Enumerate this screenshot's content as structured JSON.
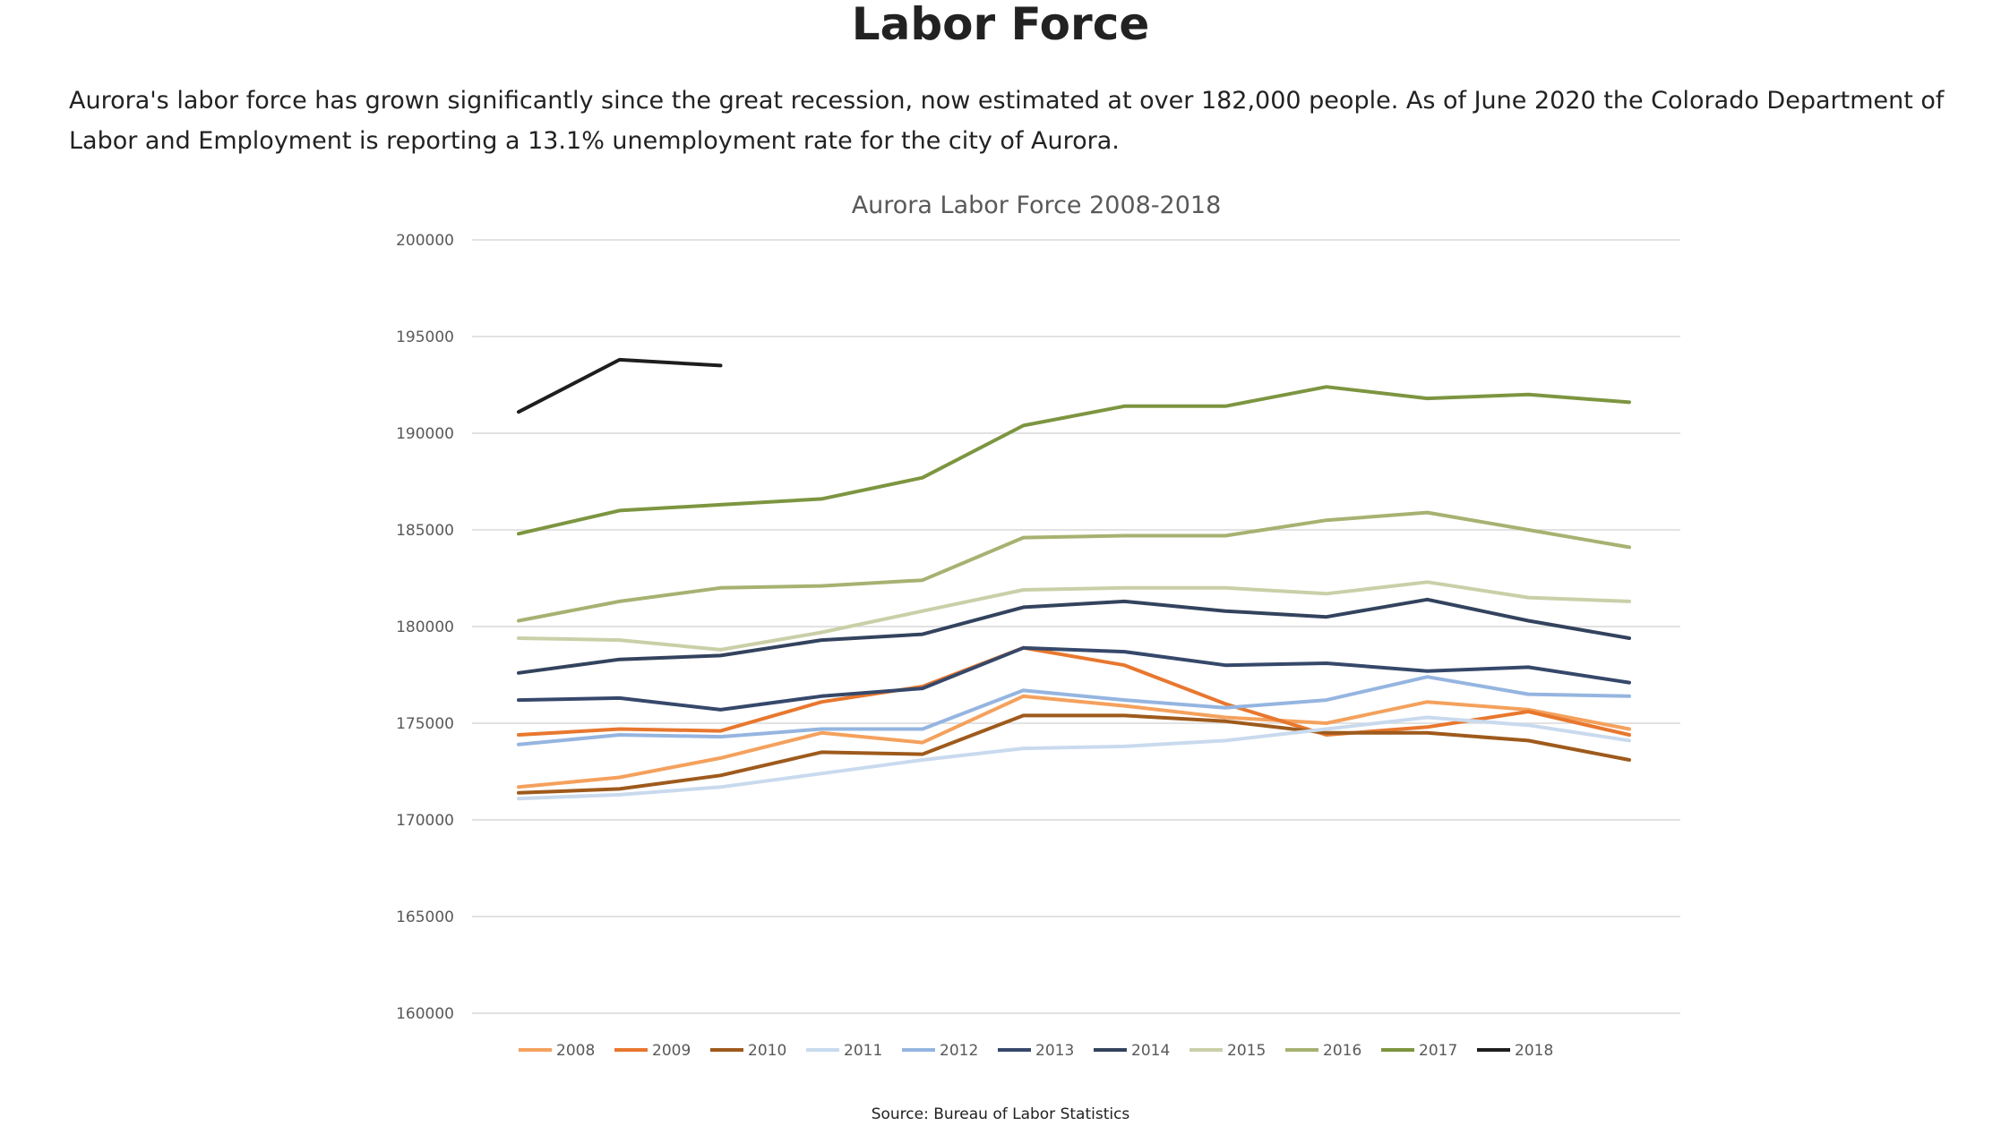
{
  "page": {
    "title": "Labor Force",
    "intro": "Aurora's labor force has grown significantly since the great recession, now estimated at over 182,000 people. As of June 2020 the Colorado Department of Labor and Employment is reporting a 13.1% unemployment rate for the city of Aurora.",
    "source": "Source: Bureau of Labor Statistics"
  },
  "chart_data": {
    "type": "line",
    "title": "Aurora Labor Force 2008-2018",
    "xlabel": "",
    "ylabel": "",
    "ylim": [
      160000,
      200000
    ],
    "yticks": [
      200000,
      195000,
      190000,
      185000,
      180000,
      175000,
      170000,
      165000,
      160000
    ],
    "grid": true,
    "legend_position": "bottom",
    "x_points": 12,
    "series": [
      {
        "name": "2008",
        "color": "#F4A15D",
        "values": [
          171700,
          172200,
          173200,
          174500,
          174000,
          176400,
          175900,
          175300,
          175000,
          176100,
          175700,
          174700
        ]
      },
      {
        "name": "2009",
        "color": "#E8772E",
        "values": [
          174400,
          174700,
          174600,
          176100,
          176900,
          178900,
          178000,
          176000,
          174400,
          174800,
          175600,
          174400
        ]
      },
      {
        "name": "2010",
        "color": "#9E5A1C",
        "values": [
          171400,
          171600,
          172300,
          173500,
          173400,
          175400,
          175400,
          175100,
          174500,
          174500,
          174100,
          173100
        ]
      },
      {
        "name": "2011",
        "color": "#C9DAEE",
        "values": [
          171100,
          171300,
          171700,
          172400,
          173100,
          173700,
          173800,
          174100,
          174700,
          175300,
          174900,
          174100
        ]
      },
      {
        "name": "2012",
        "color": "#95B5E0",
        "values": [
          173900,
          174400,
          174300,
          174700,
          174700,
          176700,
          176200,
          175800,
          176200,
          177400,
          176500,
          176400
        ]
      },
      {
        "name": "2013",
        "color": "#36486A",
        "values": [
          176200,
          176300,
          175700,
          176400,
          176800,
          178900,
          178700,
          178000,
          178100,
          177700,
          177900,
          177100
        ]
      },
      {
        "name": "2014",
        "color": "#33435E",
        "values": [
          177600,
          178300,
          178500,
          179300,
          179600,
          181000,
          181300,
          180800,
          180500,
          181400,
          180300,
          179400
        ]
      },
      {
        "name": "2015",
        "color": "#CACFA8",
        "values": [
          179400,
          179300,
          178800,
          179700,
          180800,
          181900,
          182000,
          182000,
          181700,
          182300,
          181500,
          181300
        ]
      },
      {
        "name": "2016",
        "color": "#A6B271",
        "values": [
          180300,
          181300,
          182000,
          182100,
          182400,
          184600,
          184700,
          184700,
          185500,
          185900,
          185000,
          184100
        ]
      },
      {
        "name": "2017",
        "color": "#7D9540",
        "values": [
          184800,
          186000,
          186300,
          186600,
          187700,
          190400,
          191400,
          191400,
          192400,
          191800,
          192000,
          191600
        ]
      },
      {
        "name": "2018",
        "color": "#1E1E1E",
        "values": [
          191100,
          193800,
          193500
        ]
      }
    ]
  }
}
